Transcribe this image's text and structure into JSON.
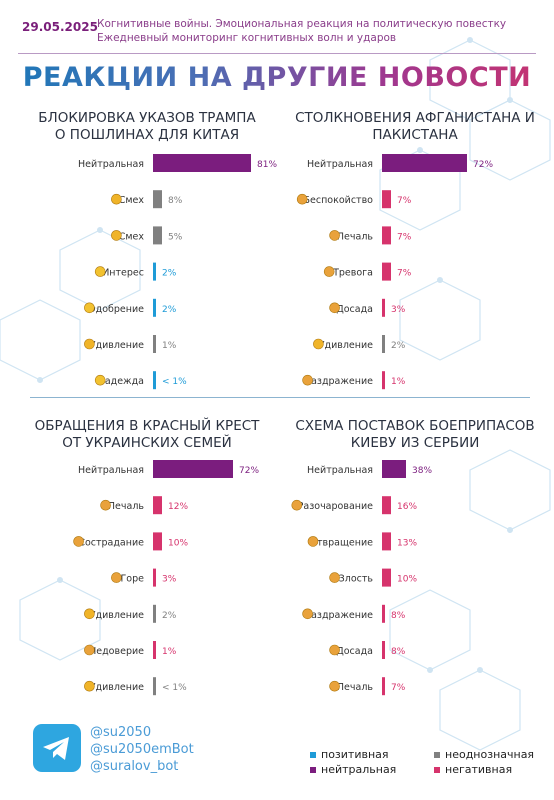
{
  "header": {
    "date": "29.05.2025",
    "subtitle_line1": "Когнитивные войны. Эмоциональная реакция на политическую повестку",
    "subtitle_line2": "Ежедневный мониторинг когнитивных волн и ударов"
  },
  "main_title": "РЕАКЦИИ НА ДРУГИЕ НОВОСТИ",
  "colors": {
    "neutral": "#7b1d7e",
    "ambiguous": "#808080",
    "positive": "#1e9bd7",
    "negative": "#d6336c"
  },
  "panels": [
    {
      "title_line1": "БЛОКИРОВКА УКАЗОВ ТРАМПА",
      "title_line2": "О ПОШЛИНАХ ДЛЯ КИТАЯ"
    },
    {
      "title_line1": "СТОЛКНОВЕНИЯ АФГАНИСТАНА И",
      "title_line2": "ПАКИСТАНА"
    },
    {
      "title_line1": "ОБРАЩЕНИЯ В КРАСНЫЙ КРЕСТ",
      "title_line2": "ОТ УКРАИНСКИХ СЕМЕЙ"
    },
    {
      "title_line1": "СХЕМА ПОСТАВОК БОЕПРИПАСОВ",
      "title_line2": "КИЕВУ ИЗ СЕРБИИ"
    }
  ],
  "chart_data": [
    {
      "type": "bar",
      "title": "БЛОКИРОВКА УКАЗОВ ТРАМПА О ПОШЛИНАХ ДЛЯ КИТАЯ",
      "categories": [
        "Нейтральная",
        "Смех",
        "Смех",
        "Интерес",
        "Одобрение",
        "Удивление",
        "Надежда"
      ],
      "values": [
        81,
        8,
        5,
        2,
        2,
        1,
        0.5
      ],
      "labels": [
        "81%",
        "8%",
        "5%",
        "2%",
        "2%",
        "1%",
        "< 1%"
      ],
      "kinds": [
        "neutral",
        "ambiguous",
        "ambiguous",
        "positive",
        "positive",
        "ambiguous",
        "positive"
      ],
      "icons": [
        "",
        "smiley-icon",
        "devil-icon",
        "question-icon",
        "heart-icon",
        "surprised-icon",
        "praying-icon"
      ]
    },
    {
      "type": "bar",
      "title": "СТОЛКНОВЕНИЯ АФГАНИСТАНА И ПАКИСТАНА",
      "categories": [
        "Нейтральная",
        "Беспокойство",
        "Печаль",
        "Тревога",
        "Досада",
        "Удивление",
        "Раздражение"
      ],
      "values": [
        72,
        7,
        7,
        7,
        3,
        2,
        1
      ],
      "labels": [
        "72%",
        "7%",
        "7%",
        "7%",
        "3%",
        "2%",
        "1%"
      ],
      "kinds": [
        "neutral",
        "negative",
        "negative",
        "negative",
        "negative",
        "ambiguous",
        "negative"
      ],
      "icons": [
        "",
        "worried-icon",
        "sad-icon",
        "anxious-icon",
        "annoyed-icon",
        "astonished-icon",
        "angry-icon"
      ]
    },
    {
      "type": "bar",
      "title": "ОБРАЩЕНИЯ В КРАСНЫЙ КРЕСТ ОТ УКРАИНСКИХ СЕМЕЙ",
      "categories": [
        "Нейтральная",
        "Печаль",
        "Сострадание",
        "Горе",
        "Удивление",
        "Недоверие",
        "Удивление"
      ],
      "values": [
        72,
        12,
        10,
        3,
        2,
        1,
        0.5
      ],
      "labels": [
        "72%",
        "12%",
        "10%",
        "3%",
        "2%",
        "1%",
        "< 1%"
      ],
      "kinds": [
        "neutral",
        "negative",
        "negative",
        "negative",
        "ambiguous",
        "negative",
        "ambiguous"
      ],
      "icons": [
        "",
        "sad-icon",
        "compassion-icon",
        "grief-icon",
        "astonished-icon",
        "distrust-icon",
        "surprised-icon"
      ]
    },
    {
      "type": "bar",
      "title": "СХЕМА ПОСТАВОК БОЕПРИПАСОВ КИЕВУ ИЗ СЕРБИИ",
      "categories": [
        "Нейтральная",
        "Разочарование",
        "Отвращение",
        "Злость",
        "Раздражение",
        "Досада",
        "Печаль"
      ],
      "values": [
        38,
        16,
        13,
        10,
        8,
        8,
        7
      ],
      "labels": [
        "38%",
        "16%",
        "13%",
        "10%",
        "8%",
        "8%",
        "7%"
      ],
      "kinds": [
        "neutral",
        "negative",
        "negative",
        "negative",
        "negative",
        "negative",
        "negative"
      ],
      "icons": [
        "",
        "disappointed-icon",
        "disgust-icon",
        "anger-icon",
        "irritated-icon",
        "annoyed-icon",
        "sad-icon"
      ]
    }
  ],
  "footer": {
    "logo": "telegram-icon",
    "handles": [
      "@su2050",
      "@su2050emBot",
      "@suralov_bot"
    ],
    "legend": [
      {
        "label": "позитивная",
        "kind": "positive"
      },
      {
        "label": "неоднозначная",
        "kind": "ambiguous"
      },
      {
        "label": "нейтральная",
        "kind": "neutral"
      },
      {
        "label": "негативная",
        "kind": "negative"
      }
    ]
  }
}
